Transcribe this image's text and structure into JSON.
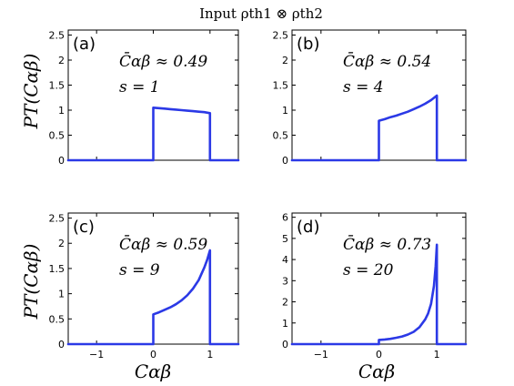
{
  "figure_title": "Input ρth1 ⊗ ρth2",
  "y_axis_label": "PT(Cαβ)",
  "x_axis_label": "Cαβ",
  "colors": {
    "curve": "#2b39e6",
    "axes": "#000000"
  },
  "chart_data": [
    {
      "type": "line",
      "panel_label": "(a)",
      "annotation_mean": "C̄αβ ≈ 0.49",
      "annotation_s": "s = 1",
      "xlim": [
        -1.5,
        1.5
      ],
      "ylim": [
        0,
        2.6
      ],
      "xticks": [
        "-1",
        "0",
        "1"
      ],
      "yticks": [
        "0",
        "0.5",
        "1",
        "1.5",
        "2",
        "2.5"
      ],
      "x": [
        -1.5,
        0,
        0,
        0.1,
        0.2,
        0.3,
        0.4,
        0.5,
        0.6,
        0.7,
        0.8,
        0.9,
        1,
        1,
        1.5
      ],
      "y": [
        0,
        0,
        1.05,
        1.04,
        1.03,
        1.02,
        1.01,
        1.0,
        0.99,
        0.98,
        0.97,
        0.96,
        0.94,
        0,
        0
      ]
    },
    {
      "type": "line",
      "panel_label": "(b)",
      "annotation_mean": "C̄αβ ≈ 0.54",
      "annotation_s": "s = 4",
      "xlim": [
        -1.5,
        1.5
      ],
      "ylim": [
        0,
        2.6
      ],
      "xticks": [
        "-1",
        "0",
        "1"
      ],
      "yticks": [
        "0",
        "0.5",
        "1",
        "1.5",
        "2",
        "2.5"
      ],
      "x": [
        -1.5,
        0,
        0,
        0.1,
        0.2,
        0.3,
        0.4,
        0.5,
        0.6,
        0.7,
        0.8,
        0.9,
        1,
        1,
        1.5
      ],
      "y": [
        0,
        0,
        0.79,
        0.82,
        0.86,
        0.89,
        0.93,
        0.97,
        1.02,
        1.07,
        1.13,
        1.2,
        1.29,
        0,
        0
      ]
    },
    {
      "type": "line",
      "panel_label": "(c)",
      "annotation_mean": "C̄αβ ≈ 0.59",
      "annotation_s": "s = 9",
      "xlim": [
        -1.5,
        1.5
      ],
      "ylim": [
        0,
        2.6
      ],
      "xticks": [
        "-1",
        "0",
        "1"
      ],
      "yticks": [
        "0",
        "0.5",
        "1",
        "1.5",
        "2",
        "2.5"
      ],
      "x": [
        -1.5,
        0,
        0,
        0.1,
        0.2,
        0.3,
        0.4,
        0.5,
        0.6,
        0.7,
        0.8,
        0.9,
        0.95,
        1,
        1,
        1.5
      ],
      "y": [
        0,
        0,
        0.59,
        0.63,
        0.68,
        0.73,
        0.79,
        0.87,
        0.97,
        1.1,
        1.27,
        1.52,
        1.67,
        1.86,
        0,
        0
      ]
    },
    {
      "type": "line",
      "panel_label": "(d)",
      "annotation_mean": "C̄αβ ≈ 0.73",
      "annotation_s": "s = 20",
      "xlim": [
        -1.5,
        1.5
      ],
      "ylim": [
        0,
        6.2
      ],
      "xticks": [
        "-1",
        "0",
        "1"
      ],
      "yticks": [
        "0",
        "1",
        "2",
        "3",
        "4",
        "5",
        "6"
      ],
      "x": [
        -1.5,
        0,
        0,
        0.1,
        0.2,
        0.3,
        0.4,
        0.5,
        0.6,
        0.7,
        0.8,
        0.85,
        0.9,
        0.95,
        0.98,
        1,
        1,
        1.5
      ],
      "y": [
        0,
        0,
        0.2,
        0.22,
        0.25,
        0.3,
        0.36,
        0.45,
        0.58,
        0.8,
        1.17,
        1.45,
        1.9,
        2.75,
        3.7,
        4.7,
        0,
        0
      ]
    }
  ]
}
